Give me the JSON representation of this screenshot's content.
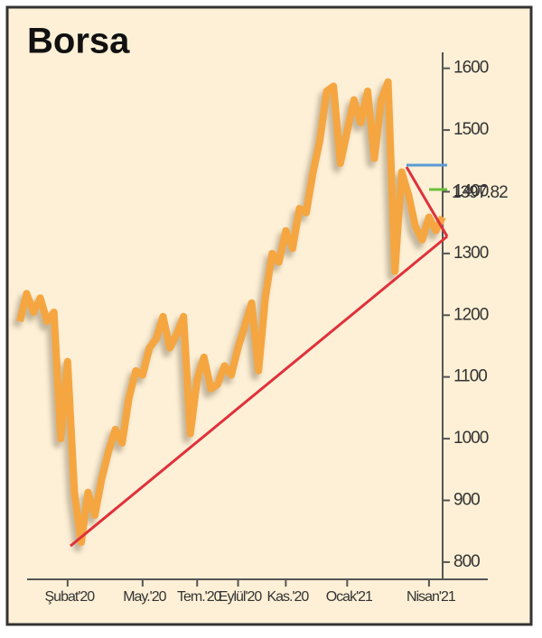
{
  "chart_data": {
    "type": "line",
    "title": "Borsa",
    "categories": [
      null,
      null,
      null,
      null,
      null,
      null,
      null,
      "Şubat'20",
      null,
      null,
      null,
      null,
      null,
      null,
      null,
      null,
      null,
      null,
      "May.'20",
      null,
      null,
      null,
      null,
      null,
      null,
      null,
      "Tem.'20",
      null,
      null,
      null,
      null,
      null,
      "Eylül'20",
      null,
      null,
      null,
      null,
      null,
      null,
      "Kas.'20",
      null,
      null,
      null,
      null,
      null,
      null,
      null,
      null,
      "Ocak'21",
      null,
      null,
      null,
      null,
      null,
      null,
      null,
      null,
      null,
      null,
      null,
      "Nisan'21",
      null,
      null
    ],
    "values": [
      1190,
      1235,
      1205,
      1228,
      1190,
      1205,
      1000,
      1125,
      913,
      832,
      913,
      876,
      935,
      979,
      1015,
      993,
      1066,
      1110,
      1103,
      1147,
      1162,
      1198,
      1147,
      1169,
      1198,
      1008,
      1096,
      1132,
      1081,
      1088,
      1118,
      1103,
      1147,
      1183,
      1220,
      1110,
      1228,
      1300,
      1286,
      1337,
      1308,
      1373,
      1366,
      1432,
      1483,
      1563,
      1571,
      1446,
      1498,
      1549,
      1512,
      1563,
      1454,
      1549,
      1578,
      1271,
      1432,
      1395,
      1344,
      1322,
      1359,
      1337,
      1359
    ],
    "color": "#f5a640",
    "ylim": [
      775,
      1620
    ],
    "yticks": [
      800,
      900,
      1000,
      1100,
      1200,
      1300,
      1400,
      1500,
      1600
    ],
    "annotation": 1397.82
  }
}
